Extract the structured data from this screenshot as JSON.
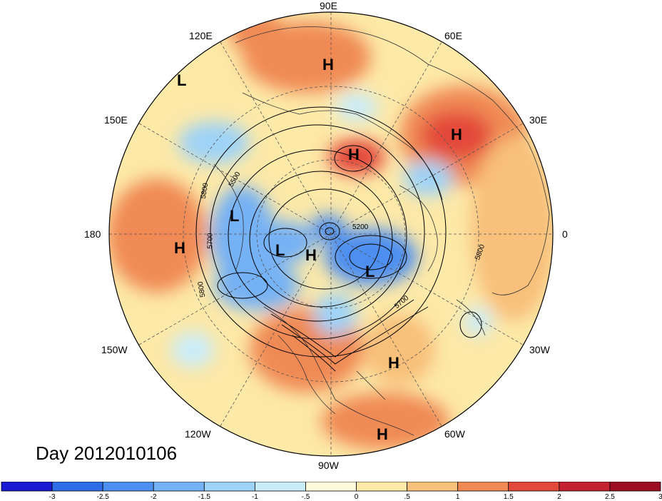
{
  "title": "Day 2012010106",
  "longitude_labels": {
    "lon90E": "90E",
    "lon120E": "120E",
    "lon60E": "60E",
    "lon150E": "150E",
    "lon30E": "30E",
    "lon180": "180",
    "lon0": "0",
    "lon150W": "150W",
    "lon30W": "30W",
    "lon120W": "120W",
    "lon60W": "60W",
    "lon90W": "90W"
  },
  "pressure_centers": [
    {
      "type": "L"
    },
    {
      "type": "H"
    },
    {
      "type": "H"
    },
    {
      "type": "H"
    },
    {
      "type": "L"
    },
    {
      "type": "H"
    },
    {
      "type": "L"
    },
    {
      "type": "H"
    },
    {
      "type": "L"
    },
    {
      "type": "H"
    },
    {
      "type": "H"
    }
  ],
  "contour_labels": [
    "5500",
    "5800",
    "5700",
    "5800",
    "5200",
    "5700",
    "5800"
  ],
  "colorbar": {
    "colors": [
      "#1a1ad1",
      "#2f6de6",
      "#4d8ff0",
      "#74b1f5",
      "#9ed3f8",
      "#c9ecfb",
      "#fffadb",
      "#fde9a8",
      "#f8c07a",
      "#f08a55",
      "#e3493a",
      "#c42230",
      "#9c0f22"
    ],
    "tick_labels": [
      "-3",
      "-2.5",
      "-2",
      "-1.5",
      "-1",
      "-.5",
      "0",
      ".5",
      "1",
      "1.5",
      "2",
      "2.5",
      "3"
    ]
  }
}
